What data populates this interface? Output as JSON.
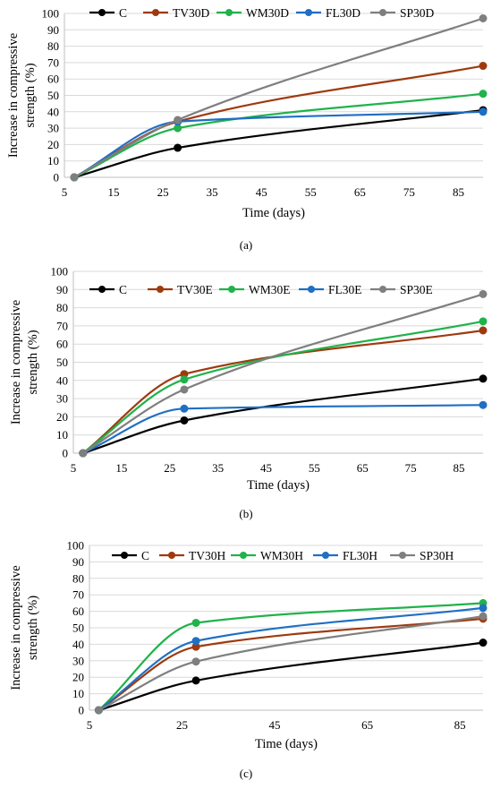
{
  "chart_data": [
    {
      "type": "line",
      "panel_label": "(a)",
      "xlabel": "Time (days)",
      "ylabel": "Increase in compressive strength (%)",
      "ylabel_lines": [
        "Increase in compressive",
        "strength (%)"
      ],
      "xlim": [
        5,
        90
      ],
      "ylim": [
        0,
        100
      ],
      "xticks": [
        "5",
        "15",
        "25",
        "35",
        "45",
        "55",
        "65",
        "75",
        "85"
      ],
      "yticks": [
        "0",
        "10",
        "20",
        "30",
        "40",
        "50",
        "60",
        "70",
        "80",
        "90",
        "100"
      ],
      "grid": "horizontal",
      "legend_position": "top",
      "x": [
        7,
        28,
        90
      ],
      "series": [
        {
          "name": "C",
          "color": "#000000",
          "values": [
            0,
            18,
            41
          ]
        },
        {
          "name": "TV30D",
          "color": "#9E3A0E",
          "values": [
            0,
            34,
            68
          ]
        },
        {
          "name": "WM30D",
          "color": "#21B24B",
          "values": [
            0,
            30,
            51
          ]
        },
        {
          "name": "FL30D",
          "color": "#1F6FC4",
          "values": [
            0,
            34,
            40
          ]
        },
        {
          "name": "SP30D",
          "color": "#7F7F7F",
          "values": [
            0,
            35,
            97
          ]
        }
      ]
    },
    {
      "type": "line",
      "panel_label": "(b)",
      "xlabel": "Time (days)",
      "ylabel": "Increase in compressive strength (%)",
      "ylabel_lines": [
        "Increase in compressive",
        "strength (%)"
      ],
      "xlim": [
        5,
        90
      ],
      "ylim": [
        0,
        100
      ],
      "xticks": [
        "5",
        "15",
        "25",
        "35",
        "45",
        "55",
        "65",
        "75",
        "85"
      ],
      "yticks": [
        "0",
        "10",
        "20",
        "30",
        "40",
        "50",
        "60",
        "70",
        "80",
        "90",
        "100"
      ],
      "grid": "horizontal",
      "legend_position": "top",
      "x": [
        7,
        28,
        90
      ],
      "series": [
        {
          "name": "C",
          "color": "#000000",
          "values": [
            0,
            18,
            41
          ]
        },
        {
          "name": "TV30E",
          "color": "#9E3A0E",
          "values": [
            0,
            43.5,
            67.5
          ]
        },
        {
          "name": "WM30E",
          "color": "#21B24B",
          "values": [
            0,
            40.5,
            72.5
          ]
        },
        {
          "name": "FL30E",
          "color": "#1F6FC4",
          "values": [
            0,
            24.5,
            26.5
          ]
        },
        {
          "name": "SP30E",
          "color": "#7F7F7F",
          "values": [
            0,
            35,
            87.5
          ]
        }
      ]
    },
    {
      "type": "line",
      "panel_label": "(c)",
      "xlabel": "Time (days)",
      "ylabel": "Increase in compressive strength (%)",
      "ylabel_lines": [
        "Increase in compressive",
        "strength (%)"
      ],
      "xlim": [
        5,
        90
      ],
      "ylim": [
        0,
        100
      ],
      "xticks": [
        "5",
        "25",
        "45",
        "65",
        "85"
      ],
      "yticks": [
        "0",
        "10",
        "20",
        "30",
        "40",
        "50",
        "60",
        "70",
        "80",
        "90",
        "100"
      ],
      "grid": "horizontal",
      "legend_position": "top",
      "x": [
        7,
        28,
        90
      ],
      "series": [
        {
          "name": "C",
          "color": "#000000",
          "values": [
            0,
            18,
            41
          ]
        },
        {
          "name": "TV30H",
          "color": "#9E3A0E",
          "values": [
            0,
            38.5,
            55.5
          ]
        },
        {
          "name": "WM30H",
          "color": "#21B24B",
          "values": [
            0,
            53,
            65
          ]
        },
        {
          "name": "FL30H",
          "color": "#1F6FC4",
          "values": [
            0,
            42,
            62
          ]
        },
        {
          "name": "SP30H",
          "color": "#7F7F7F",
          "values": [
            0,
            29.5,
            57
          ]
        }
      ]
    }
  ]
}
